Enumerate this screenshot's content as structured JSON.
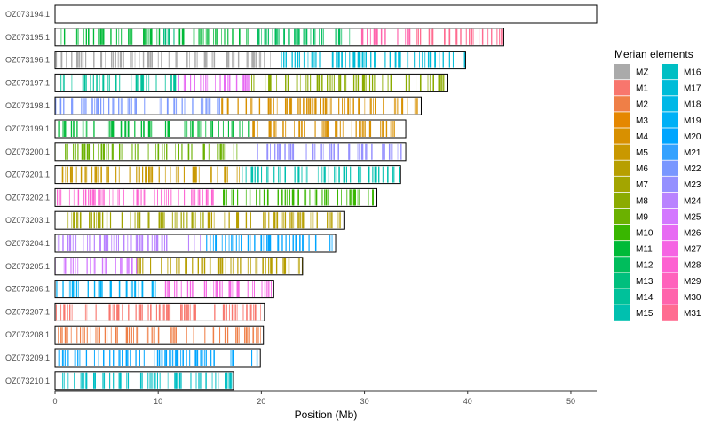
{
  "chart_data": {
    "type": "karyotype-bars",
    "xlabel": "Position (Mb)",
    "ylabel": "",
    "xlim": [
      0,
      52.5
    ],
    "xticks": [
      0,
      10,
      20,
      30,
      40,
      50
    ],
    "grid": false,
    "legend_title": "Merian elements",
    "legend_position": "right",
    "legend": [
      {
        "name": "MZ",
        "color": "#AAAAAA"
      },
      {
        "name": "M1",
        "color": "#F8766D"
      },
      {
        "name": "M2",
        "color": "#EF7F47"
      },
      {
        "name": "M3",
        "color": "#E58700"
      },
      {
        "name": "M4",
        "color": "#D89000"
      },
      {
        "name": "M5",
        "color": "#C99800"
      },
      {
        "name": "M6",
        "color": "#B79F00"
      },
      {
        "name": "M7",
        "color": "#A3A500"
      },
      {
        "name": "M8",
        "color": "#8BAB00"
      },
      {
        "name": "M9",
        "color": "#6BB100"
      },
      {
        "name": "M10",
        "color": "#39B600"
      },
      {
        "name": "M11",
        "color": "#00BA38"
      },
      {
        "name": "M12",
        "color": "#00BD5C"
      },
      {
        "name": "M13",
        "color": "#00BF7D"
      },
      {
        "name": "M14",
        "color": "#00C19A"
      },
      {
        "name": "M15",
        "color": "#00C0AF"
      },
      {
        "name": "M16",
        "color": "#00BFC4"
      },
      {
        "name": "M17",
        "color": "#00BCD8"
      },
      {
        "name": "M18",
        "color": "#00B8E7"
      },
      {
        "name": "M19",
        "color": "#00B0F6"
      },
      {
        "name": "M20",
        "color": "#00A5FF"
      },
      {
        "name": "M21",
        "color": "#35A2FF"
      },
      {
        "name": "M22",
        "color": "#7997FF"
      },
      {
        "name": "M23",
        "color": "#9590FF"
      },
      {
        "name": "M24",
        "color": "#B983FF"
      },
      {
        "name": "M25",
        "color": "#D378FF"
      },
      {
        "name": "M26",
        "color": "#E76BF3"
      },
      {
        "name": "M27",
        "color": "#F564E3"
      },
      {
        "name": "M28",
        "color": "#FD61D1"
      },
      {
        "name": "M29",
        "color": "#FF62BC"
      },
      {
        "name": "M30",
        "color": "#FF64AC"
      },
      {
        "name": "M31",
        "color": "#FF6C91"
      }
    ],
    "chromosomes": [
      {
        "name": "OZ073194.1",
        "length": 52.5,
        "segments": []
      },
      {
        "name": "OZ073195.1",
        "length": 43.5,
        "segments": [
          {
            "start": 0.0,
            "end": 10.5,
            "element": "M11"
          },
          {
            "start": 10.5,
            "end": 12.0,
            "element": "M13"
          },
          {
            "start": 12.0,
            "end": 19.0,
            "element": "M11"
          },
          {
            "start": 19.0,
            "end": 29.5,
            "element": "M12"
          },
          {
            "start": 29.5,
            "end": 35.0,
            "element": "M30"
          },
          {
            "start": 35.0,
            "end": 43.5,
            "element": "M31"
          }
        ]
      },
      {
        "name": "OZ073196.1",
        "length": 39.8,
        "segments": [
          {
            "start": 0.0,
            "end": 22.0,
            "element": "MZ"
          },
          {
            "start": 22.0,
            "end": 39.8,
            "element": "M17"
          }
        ]
      },
      {
        "name": "OZ073197.1",
        "length": 38.0,
        "segments": [
          {
            "start": 0.0,
            "end": 12.0,
            "element": "M14"
          },
          {
            "start": 12.0,
            "end": 19.0,
            "element": "M26"
          },
          {
            "start": 19.0,
            "end": 38.0,
            "element": "M8"
          }
        ]
      },
      {
        "name": "OZ073198.1",
        "length": 35.5,
        "segments": [
          {
            "start": 0.0,
            "end": 16.0,
            "element": "M22"
          },
          {
            "start": 16.0,
            "end": 35.5,
            "element": "M4"
          }
        ]
      },
      {
        "name": "OZ073199.1",
        "length": 34.0,
        "segments": [
          {
            "start": 0.0,
            "end": 19.0,
            "element": "M11"
          },
          {
            "start": 19.0,
            "end": 34.0,
            "element": "M4"
          }
        ]
      },
      {
        "name": "OZ073200.1",
        "length": 34.0,
        "segments": [
          {
            "start": 0.0,
            "end": 18.0,
            "element": "M9"
          },
          {
            "start": 18.0,
            "end": 34.0,
            "element": "M23"
          }
        ]
      },
      {
        "name": "OZ073201.1",
        "length": 33.5,
        "segments": [
          {
            "start": 0.0,
            "end": 18.0,
            "element": "M5"
          },
          {
            "start": 18.0,
            "end": 33.5,
            "element": "M15"
          }
        ]
      },
      {
        "name": "OZ073202.1",
        "length": 31.2,
        "segments": [
          {
            "start": 0.0,
            "end": 16.0,
            "element": "M28"
          },
          {
            "start": 16.0,
            "end": 31.2,
            "element": "M10"
          }
        ]
      },
      {
        "name": "OZ073203.1",
        "length": 28.0,
        "segments": [
          {
            "start": 0.0,
            "end": 14.5,
            "element": "M7"
          },
          {
            "start": 14.5,
            "end": 28.0,
            "element": "M6"
          }
        ]
      },
      {
        "name": "OZ073204.1",
        "length": 27.2,
        "segments": [
          {
            "start": 0.0,
            "end": 14.5,
            "element": "M24"
          },
          {
            "start": 14.5,
            "end": 27.2,
            "element": "M20"
          }
        ]
      },
      {
        "name": "OZ073205.1",
        "length": 24.0,
        "segments": [
          {
            "start": 0.0,
            "end": 8.0,
            "element": "M25"
          },
          {
            "start": 8.0,
            "end": 24.0,
            "element": "M6"
          }
        ]
      },
      {
        "name": "OZ073206.1",
        "length": 21.2,
        "segments": [
          {
            "start": 0.0,
            "end": 10.0,
            "element": "M19"
          },
          {
            "start": 10.0,
            "end": 21.2,
            "element": "M27"
          }
        ]
      },
      {
        "name": "OZ073207.1",
        "length": 20.3,
        "segments": [
          {
            "start": 0.0,
            "end": 20.3,
            "element": "M1"
          }
        ]
      },
      {
        "name": "OZ073208.1",
        "length": 20.2,
        "segments": [
          {
            "start": 0.0,
            "end": 20.2,
            "element": "M2"
          }
        ]
      },
      {
        "name": "OZ073209.1",
        "length": 19.9,
        "segments": [
          {
            "start": 0.0,
            "end": 19.9,
            "element": "M20"
          }
        ]
      },
      {
        "name": "OZ073210.1",
        "length": 17.3,
        "segments": [
          {
            "start": 0.0,
            "end": 17.3,
            "element": "M16"
          }
        ]
      }
    ]
  }
}
